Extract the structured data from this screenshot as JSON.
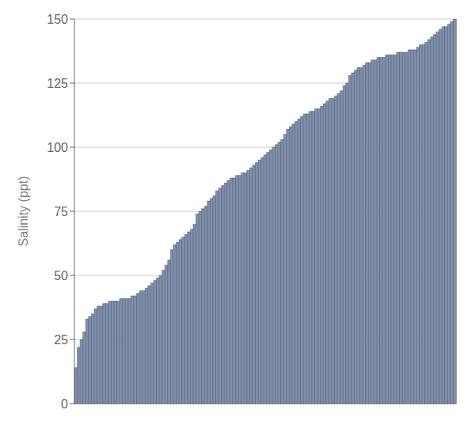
{
  "chart_data": {
    "type": "bar",
    "ylabel": "Salinity (ppt)",
    "values": [
      14,
      22,
      25,
      28,
      33,
      34,
      35,
      37,
      38,
      38,
      39,
      39,
      40,
      40,
      40,
      40,
      41,
      41,
      41,
      41,
      42,
      42,
      43,
      44,
      44,
      45,
      46,
      47,
      48,
      49,
      50,
      52,
      54,
      56,
      60,
      62,
      63,
      64,
      65,
      66,
      67,
      68,
      70,
      74,
      75,
      76,
      77,
      79,
      80,
      81,
      83,
      84,
      85,
      86,
      87,
      88,
      88,
      89,
      89,
      90,
      90,
      91,
      92,
      93,
      94,
      95,
      96,
      97,
      98,
      99,
      100,
      101,
      102,
      103,
      105,
      107,
      108,
      109,
      110,
      111,
      112,
      113,
      113,
      114,
      114,
      115,
      115,
      116,
      117,
      118,
      119,
      119,
      120,
      121,
      122,
      124,
      125,
      128,
      129,
      130,
      131,
      131,
      132,
      133,
      133,
      134,
      134,
      135,
      135,
      135,
      136,
      136,
      136,
      136,
      137,
      137,
      137,
      137,
      138,
      138,
      138,
      139,
      140,
      140,
      141,
      142,
      143,
      144,
      145,
      146,
      147,
      147,
      148,
      149,
      150
    ],
    "color": "#8090aa",
    "ylim": [
      0,
      150
    ],
    "yticks": [
      0,
      25,
      50,
      75,
      100,
      125,
      150
    ],
    "grid": true,
    "tick_labels": "y"
  }
}
